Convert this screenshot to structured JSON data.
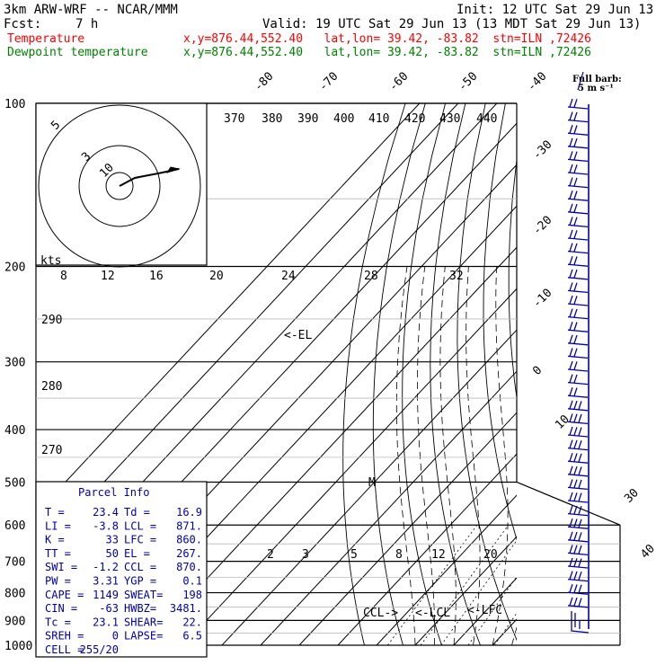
{
  "header": {
    "model": "3km ARW-WRF -- NCAR/MMM",
    "init": "Init: 12 UTC Sat 29 Jun 13",
    "fcst_label": "Fcst:",
    "fcst_value": "7 h",
    "valid": "Valid: 19 UTC Sat 29 Jun 13 (13 MDT Sat 29 Jun 13)",
    "temp_label": "Temperature",
    "temp_loc": "x,y=876.44,552.40   lat,lon= 39.42, -83.82  stn=ILN ,72426",
    "dew_label": "Dewpoint temperature",
    "dew_loc": "x,y=876.44,552.40   lat,lon= 39.42, -83.82  stn=ILN ,72426",
    "barb_title_1": "Full barb:",
    "barb_title_2": "5 m s⁻¹"
  },
  "colors": {
    "temperature": "#ff0000",
    "dewpoint": "#008000",
    "text": "#000000",
    "annot": "#0000aa",
    "barb": "#0000aa"
  },
  "pressure_labels": [
    "100",
    "200",
    "300",
    "400",
    "500",
    "600",
    "700",
    "800",
    "900",
    "1000"
  ],
  "theta_labels": [
    "370",
    "380",
    "390",
    "400",
    "410",
    "420",
    "430",
    "440"
  ],
  "theta_left_labels": [
    "290",
    "280",
    "270"
  ],
  "top_temp_labels": [
    "-80",
    "-70",
    "-60",
    "-50",
    "-40"
  ],
  "right_temp_labels": [
    "-30",
    "-20",
    "-10",
    "0",
    "10",
    "30",
    "40"
  ],
  "mixing_labels": [
    "2",
    "3",
    "5",
    "8",
    "12",
    "20"
  ],
  "hodo_labels": {
    "kts": "kts",
    "speeds": [
      "8",
      "12",
      "16",
      "20",
      "24",
      "28",
      "32"
    ],
    "rings": [
      "5",
      "3",
      "10"
    ]
  },
  "annotations": {
    "el": "<-EL",
    "ccl": "CCL->",
    "lcl": "<-LCL",
    "lfc": "<-LFC",
    "m": "M"
  },
  "parcel": {
    "title": "Parcel Info",
    "rows": [
      [
        "T   =",
        "23.4",
        "Td =",
        "16.9"
      ],
      [
        "LI  =",
        "-3.8",
        "LCL =",
        "871."
      ],
      [
        "K   =",
        "33",
        "LFC =",
        "860."
      ],
      [
        "TT  =",
        "50",
        "EL  =",
        "267."
      ],
      [
        "SWI =",
        "-1.2",
        "CCL =",
        "870."
      ],
      [
        "PW  =",
        "3.31",
        "YGP =",
        "0.1"
      ],
      [
        "CAPE =",
        "1149",
        "SWEAT=",
        "198"
      ],
      [
        "CIN =",
        "-63",
        "HWBZ=",
        "3481."
      ],
      [
        "Tc  =",
        "23.1",
        "SHEAR=",
        "22."
      ],
      [
        "SREH =",
        "0",
        "LAPSE=",
        "6.5"
      ],
      [
        "CELL =",
        "255/20",
        "",
        ""
      ]
    ]
  },
  "chart_data": {
    "type": "line",
    "title": "3km ARW-WRF -- NCAR/MMM",
    "xlabel": "",
    "ylabel": "",
    "y_scale": "log-pressure",
    "ylim": [
      1000,
      100
    ],
    "series": [
      {
        "name": "Temperature",
        "pressure": [
          980,
          950,
          900,
          850,
          800,
          750,
          700,
          650,
          600,
          550,
          500,
          450,
          400,
          350,
          300,
          280,
          265,
          250,
          230,
          200,
          180,
          160,
          140,
          120,
          100
        ],
        "values": [
          23.4,
          20.5,
          18.0,
          16.0,
          13.6,
          11.0,
          8.6,
          5.8,
          2.5,
          -1.0,
          -5.2,
          -10.0,
          -16.0,
          -22.5,
          -30.5,
          -35.0,
          -36.5,
          -37.0,
          -40.0,
          -46.0,
          -51.0,
          -56.0,
          -61.0,
          -66.0,
          -72.0
        ]
      },
      {
        "name": "Dewpoint temperature",
        "pressure": [
          980,
          950,
          900,
          850,
          800,
          750,
          700,
          650,
          600,
          550,
          500,
          450,
          400,
          350,
          330,
          300,
          270,
          250,
          230,
          200,
          180,
          160,
          140,
          125,
          110,
          100
        ],
        "values": [
          16.9,
          16.5,
          15.5,
          13.5,
          10.5,
          8.0,
          5.0,
          1.0,
          -3.0,
          -9.0,
          -15.0,
          -22.0,
          -27.0,
          -34.0,
          -38.0,
          -45.0,
          -52.0,
          -60.0,
          -62.0,
          -66.0,
          -71.0,
          -78.0,
          -85.0,
          -93.0,
          -98.0,
          -100.0
        ]
      }
    ],
    "legend": "top-left",
    "grid": true
  }
}
